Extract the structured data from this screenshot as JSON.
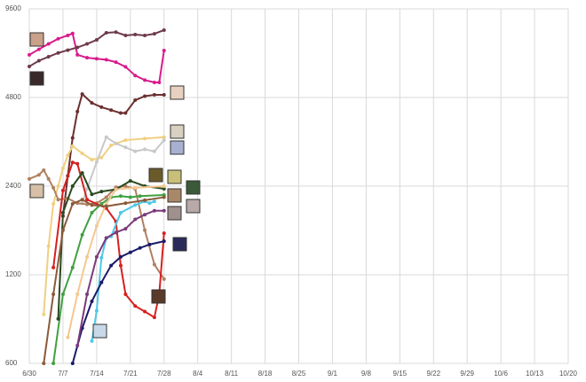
{
  "chart_data": {
    "type": "line",
    "yscale": "log",
    "grid": true,
    "xlim": [
      0,
      112
    ],
    "ylim": [
      600,
      9600
    ],
    "xticks": [
      {
        "value": 0,
        "label": "6/30"
      },
      {
        "value": 7,
        "label": "7/7"
      },
      {
        "value": 14,
        "label": "7/14"
      },
      {
        "value": 21,
        "label": "7/21"
      },
      {
        "value": 28,
        "label": "7/28"
      },
      {
        "value": 35,
        "label": "8/4"
      },
      {
        "value": 42,
        "label": "8/11"
      },
      {
        "value": 49,
        "label": "8/18"
      },
      {
        "value": 56,
        "label": "8/25"
      },
      {
        "value": 63,
        "label": "9/1"
      },
      {
        "value": 70,
        "label": "9/8"
      },
      {
        "value": 77,
        "label": "9/15"
      },
      {
        "value": 84,
        "label": "9/22"
      },
      {
        "value": 91,
        "label": "9/29"
      },
      {
        "value": 98,
        "label": "10/6"
      },
      {
        "value": 105,
        "label": "10/13"
      },
      {
        "value": 112,
        "label": "10/20"
      }
    ],
    "yticks": [
      600,
      1200,
      2400,
      4800,
      9600
    ],
    "series": [
      {
        "color": "#d81b8c",
        "x": [
          0,
          2,
          4,
          6,
          8,
          9,
          10,
          12,
          14,
          16,
          18,
          20,
          22,
          24,
          26,
          27,
          28
        ],
        "values": [
          6700,
          7000,
          7300,
          7600,
          7800,
          7920,
          6700,
          6550,
          6500,
          6450,
          6330,
          6100,
          5700,
          5500,
          5400,
          5400,
          6930
        ]
      },
      {
        "color": "#6e3a4c",
        "x": [
          0,
          2,
          4,
          6,
          8,
          10,
          12,
          14,
          16,
          18,
          20,
          22,
          24,
          26,
          28
        ],
        "values": [
          6120,
          6400,
          6600,
          6800,
          6950,
          7100,
          7300,
          7530,
          7960,
          8000,
          7800,
          7850,
          7800,
          7900,
          8130
        ]
      },
      {
        "color": "#6b3030",
        "x": [
          7,
          8,
          9,
          10,
          11,
          13,
          15,
          17,
          19,
          20,
          22,
          24,
          26,
          28
        ],
        "values": [
          1900,
          2600,
          3500,
          4300,
          4930,
          4600,
          4450,
          4350,
          4250,
          4250,
          4700,
          4850,
          4900,
          4900
        ]
      },
      {
        "color": "#f0d080",
        "x": [
          3,
          4,
          5,
          6,
          7,
          8,
          9,
          11,
          13,
          15,
          17,
          20,
          24,
          28
        ],
        "values": [
          880,
          1500,
          2090,
          2400,
          2760,
          3050,
          3280,
          3100,
          2950,
          3000,
          3300,
          3440,
          3480,
          3520
        ]
      },
      {
        "color": "#c8c8c8",
        "x": [
          11,
          12,
          14,
          16,
          18,
          20,
          22,
          24,
          26,
          28
        ],
        "values": [
          2100,
          2350,
          2900,
          3520,
          3350,
          3250,
          3150,
          3200,
          3150,
          3440
        ]
      },
      {
        "color": "#b08060",
        "x": [
          0,
          2,
          3,
          4,
          5,
          6,
          8,
          10,
          12,
          14,
          16,
          18,
          20,
          22,
          24,
          26,
          28
        ],
        "values": [
          2540,
          2620,
          2720,
          2540,
          2370,
          2160,
          2180,
          2100,
          2080,
          2100,
          2200,
          2380,
          2400,
          2350,
          1700,
          1300,
          1160
        ]
      },
      {
        "color": "#d62020",
        "x": [
          5,
          7,
          9,
          10,
          12,
          16,
          18,
          19,
          20,
          22,
          24,
          26,
          27,
          28
        ],
        "values": [
          1270,
          2320,
          2890,
          2860,
          2160,
          2020,
          1820,
          1290,
          1030,
          940,
          900,
          860,
          1030,
          1660
        ]
      },
      {
        "color": "#40a040",
        "x": [
          5,
          7,
          9,
          11,
          13,
          15,
          17,
          19,
          21,
          23,
          28
        ],
        "values": [
          600,
          1030,
          1270,
          1640,
          1950,
          2090,
          2200,
          2220,
          2200,
          2220,
          2240
        ]
      },
      {
        "color": "#2a4a20",
        "x": [
          6,
          7,
          9,
          11,
          13,
          15,
          18,
          21,
          24,
          28
        ],
        "values": [
          850,
          1950,
          2400,
          2660,
          2250,
          2300,
          2340,
          2500,
          2400,
          2350
        ]
      },
      {
        "color": "#50c8e8",
        "x": [
          13,
          14,
          15,
          16,
          17,
          19,
          22,
          24,
          25,
          26
        ],
        "values": [
          715,
          905,
          1370,
          1600,
          1620,
          1950,
          2070,
          2130,
          2100,
          2130
        ]
      },
      {
        "color": "#1a1a6a",
        "x": [
          9,
          11,
          13,
          15,
          17,
          19,
          21,
          23,
          25,
          28
        ],
        "values": [
          600,
          790,
          975,
          1130,
          1290,
          1380,
          1430,
          1480,
          1520,
          1560
        ]
      },
      {
        "color": "#7a3a7a",
        "x": [
          10,
          12,
          14,
          16,
          18,
          20,
          22,
          24,
          26,
          28
        ],
        "values": [
          690,
          1030,
          1380,
          1600,
          1670,
          1720,
          1850,
          1920,
          1980,
          1980
        ]
      },
      {
        "color": "#f5c890",
        "x": [
          8,
          10,
          12,
          14,
          16,
          18,
          22,
          28
        ],
        "values": [
          735,
          1030,
          1380,
          1760,
          2090,
          2340,
          2370,
          2400
        ]
      },
      {
        "color": "#8b5a3a",
        "x": [
          3,
          5,
          7,
          9,
          11,
          13,
          16,
          20,
          24,
          28
        ],
        "values": [
          600,
          1030,
          1700,
          2090,
          2160,
          2070,
          2050,
          2100,
          2150,
          2200
        ]
      }
    ]
  }
}
